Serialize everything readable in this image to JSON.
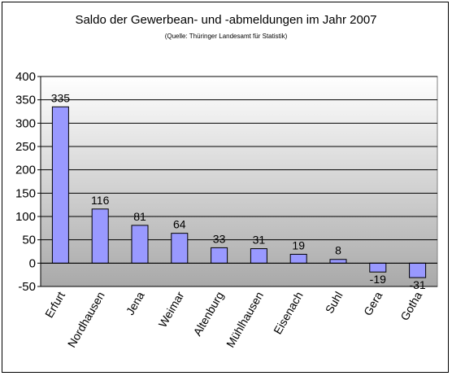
{
  "chart_data": {
    "type": "bar",
    "title": "Saldo der Gewerbean- und -abmeldungen im Jahr 2007",
    "subtitle": "(Quelle: Thüringer Landesamt für Statistik)",
    "categories": [
      "Erfurt",
      "Nordhausen",
      "Jena",
      "Weimar",
      "Altenburg",
      "Mühlhausen",
      "Eisenach",
      "Suhl",
      "Gera",
      "Gotha"
    ],
    "values": [
      335,
      116,
      81,
      64,
      33,
      31,
      19,
      8,
      -19,
      -31
    ],
    "data_labels": [
      "335",
      "116",
      "81",
      "64",
      "33",
      "31",
      "19",
      "8",
      "-19",
      "-31"
    ],
    "ylim": [
      -50,
      400
    ],
    "yticks": [
      -50,
      0,
      50,
      100,
      150,
      200,
      250,
      300,
      350,
      400
    ],
    "grid": true,
    "legend": false,
    "colors": {
      "bar_fill": "#9999ff",
      "bar_stroke": "#000000",
      "plot_top": "#ffffff",
      "plot_bottom": "#a9a9a9"
    }
  }
}
